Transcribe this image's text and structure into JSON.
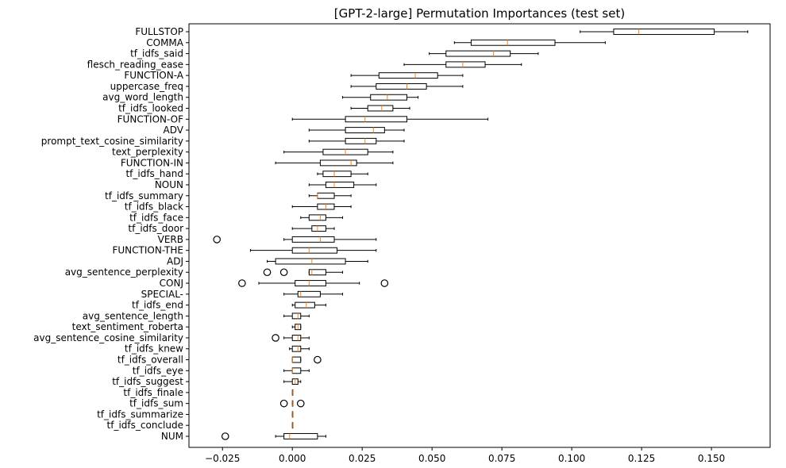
{
  "chart_data": {
    "type": "boxplot",
    "orientation": "horizontal",
    "title": "[GPT-2-large] Permutation Importances (test set)",
    "xlabel": "",
    "ylabel": "",
    "xlim": [
      -0.037,
      0.171
    ],
    "xticks": [
      -0.025,
      0.0,
      0.025,
      0.05,
      0.075,
      0.1,
      0.125,
      0.15
    ],
    "xtick_labels": [
      "−0.025",
      "0.000",
      "0.025",
      "0.050",
      "0.075",
      "0.100",
      "0.125",
      "0.150"
    ],
    "grid": false,
    "box_color": "#000000",
    "median_color": "#ff7f0e",
    "features": [
      {
        "name": "FULLSTOP",
        "wl": 0.103,
        "q1": 0.115,
        "med": 0.124,
        "q3": 0.151,
        "wh": 0.163,
        "outliers": []
      },
      {
        "name": "COMMA",
        "wl": 0.058,
        "q1": 0.064,
        "med": 0.077,
        "q3": 0.094,
        "wh": 0.112,
        "outliers": []
      },
      {
        "name": "tf_idfs_said",
        "wl": 0.049,
        "q1": 0.055,
        "med": 0.072,
        "q3": 0.078,
        "wh": 0.088,
        "outliers": []
      },
      {
        "name": "flesch_reading_ease",
        "wl": 0.04,
        "q1": 0.055,
        "med": 0.061,
        "q3": 0.069,
        "wh": 0.082,
        "outliers": []
      },
      {
        "name": "FUNCTION-A",
        "wl": 0.021,
        "q1": 0.031,
        "med": 0.044,
        "q3": 0.052,
        "wh": 0.061,
        "outliers": []
      },
      {
        "name": "uppercase_freq",
        "wl": 0.021,
        "q1": 0.03,
        "med": 0.041,
        "q3": 0.048,
        "wh": 0.061,
        "outliers": []
      },
      {
        "name": "avg_word_length",
        "wl": 0.018,
        "q1": 0.028,
        "med": 0.034,
        "q3": 0.041,
        "wh": 0.045,
        "outliers": []
      },
      {
        "name": "tf_idfs_looked",
        "wl": 0.021,
        "q1": 0.027,
        "med": 0.032,
        "q3": 0.036,
        "wh": 0.042,
        "outliers": []
      },
      {
        "name": "FUNCTION-OF",
        "wl": 0.0,
        "q1": 0.019,
        "med": 0.026,
        "q3": 0.041,
        "wh": 0.07,
        "outliers": []
      },
      {
        "name": "ADV",
        "wl": 0.006,
        "q1": 0.019,
        "med": 0.029,
        "q3": 0.033,
        "wh": 0.04,
        "outliers": []
      },
      {
        "name": "prompt_text_cosine_similarity",
        "wl": 0.006,
        "q1": 0.019,
        "med": 0.026,
        "q3": 0.03,
        "wh": 0.04,
        "outliers": []
      },
      {
        "name": "text_perplexity",
        "wl": -0.003,
        "q1": 0.011,
        "med": 0.019,
        "q3": 0.027,
        "wh": 0.036,
        "outliers": []
      },
      {
        "name": "FUNCTION-IN",
        "wl": -0.006,
        "q1": 0.01,
        "med": 0.021,
        "q3": 0.023,
        "wh": 0.036,
        "outliers": []
      },
      {
        "name": "tf_idfs_hand",
        "wl": 0.009,
        "q1": 0.011,
        "med": 0.015,
        "q3": 0.021,
        "wh": 0.027,
        "outliers": []
      },
      {
        "name": "NOUN",
        "wl": 0.006,
        "q1": 0.012,
        "med": 0.015,
        "q3": 0.022,
        "wh": 0.03,
        "outliers": []
      },
      {
        "name": "tf_idfs_summary",
        "wl": 0.006,
        "q1": 0.009,
        "med": 0.009,
        "q3": 0.015,
        "wh": 0.021,
        "outliers": []
      },
      {
        "name": "tf_idfs_black",
        "wl": 0.0,
        "q1": 0.009,
        "med": 0.012,
        "q3": 0.015,
        "wh": 0.021,
        "outliers": []
      },
      {
        "name": "tf_idfs_face",
        "wl": 0.003,
        "q1": 0.006,
        "med": 0.01,
        "q3": 0.012,
        "wh": 0.018,
        "outliers": []
      },
      {
        "name": "tf_idfs_door",
        "wl": 0.0,
        "q1": 0.007,
        "med": 0.009,
        "q3": 0.012,
        "wh": 0.015,
        "outliers": []
      },
      {
        "name": "VERB",
        "wl": -0.003,
        "q1": 0.0,
        "med": 0.01,
        "q3": 0.015,
        "wh": 0.03,
        "outliers": [
          -0.027
        ]
      },
      {
        "name": "FUNCTION-THE",
        "wl": -0.015,
        "q1": 0.0,
        "med": 0.006,
        "q3": 0.016,
        "wh": 0.03,
        "outliers": []
      },
      {
        "name": "ADJ",
        "wl": -0.009,
        "q1": -0.006,
        "med": 0.007,
        "q3": 0.019,
        "wh": 0.027,
        "outliers": []
      },
      {
        "name": "avg_sentence_perplexity",
        "wl": 0.006,
        "q1": 0.006,
        "med": 0.007,
        "q3": 0.012,
        "wh": 0.018,
        "outliers": [
          -0.009,
          -0.003
        ]
      },
      {
        "name": "CONJ",
        "wl": -0.012,
        "q1": 0.001,
        "med": 0.006,
        "q3": 0.012,
        "wh": 0.024,
        "outliers": [
          -0.018,
          0.033
        ]
      },
      {
        "name": "SPECIAL-",
        "wl": -0.003,
        "q1": 0.002,
        "med": 0.003,
        "q3": 0.01,
        "wh": 0.018,
        "outliers": []
      },
      {
        "name": "tf_idfs_end",
        "wl": 0.0,
        "q1": 0.001,
        "med": 0.005,
        "q3": 0.008,
        "wh": 0.012,
        "outliers": []
      },
      {
        "name": "avg_sentence_length",
        "wl": -0.003,
        "q1": 0.0,
        "med": 0.002,
        "q3": 0.003,
        "wh": 0.006,
        "outliers": []
      },
      {
        "name": "text_sentiment_roberta",
        "wl": 0.0,
        "q1": 0.001,
        "med": 0.002,
        "q3": 0.003,
        "wh": 0.003,
        "outliers": []
      },
      {
        "name": "avg_sentence_cosine_similarity",
        "wl": -0.003,
        "q1": 0.0,
        "med": 0.002,
        "q3": 0.003,
        "wh": 0.006,
        "outliers": [
          -0.006
        ]
      },
      {
        "name": "tf_idfs_knew",
        "wl": -0.001,
        "q1": 0.0,
        "med": 0.002,
        "q3": 0.003,
        "wh": 0.006,
        "outliers": []
      },
      {
        "name": "tf_idfs_overall",
        "wl": 0.0,
        "q1": 0.0,
        "med": 0.0,
        "q3": 0.003,
        "wh": 0.003,
        "outliers": [
          0.009
        ]
      },
      {
        "name": "tf_idfs_eye",
        "wl": -0.003,
        "q1": 0.0,
        "med": 0.0,
        "q3": 0.003,
        "wh": 0.006,
        "outliers": []
      },
      {
        "name": "tf_idfs_suggest",
        "wl": -0.003,
        "q1": 0.0,
        "med": 0.001,
        "q3": 0.002,
        "wh": 0.003,
        "outliers": []
      },
      {
        "name": "tf_idfs_finale",
        "wl": 0.0,
        "q1": 0.0,
        "med": 0.0,
        "q3": 0.0,
        "wh": 0.0,
        "outliers": []
      },
      {
        "name": "tf_idfs_sum",
        "wl": 0.0,
        "q1": 0.0,
        "med": 0.0,
        "q3": 0.0,
        "wh": 0.0,
        "outliers": [
          -0.003,
          0.003
        ]
      },
      {
        "name": "tf_idfs_summarize",
        "wl": 0.0,
        "q1": 0.0,
        "med": 0.0,
        "q3": 0.0,
        "wh": 0.0,
        "outliers": []
      },
      {
        "name": "tf_idfs_conclude",
        "wl": 0.0,
        "q1": 0.0,
        "med": 0.0,
        "q3": 0.0,
        "wh": 0.0,
        "outliers": []
      },
      {
        "name": "NUM",
        "wl": -0.006,
        "q1": -0.003,
        "med": -0.001,
        "q3": 0.009,
        "wh": 0.012,
        "outliers": [
          -0.024
        ]
      }
    ]
  }
}
